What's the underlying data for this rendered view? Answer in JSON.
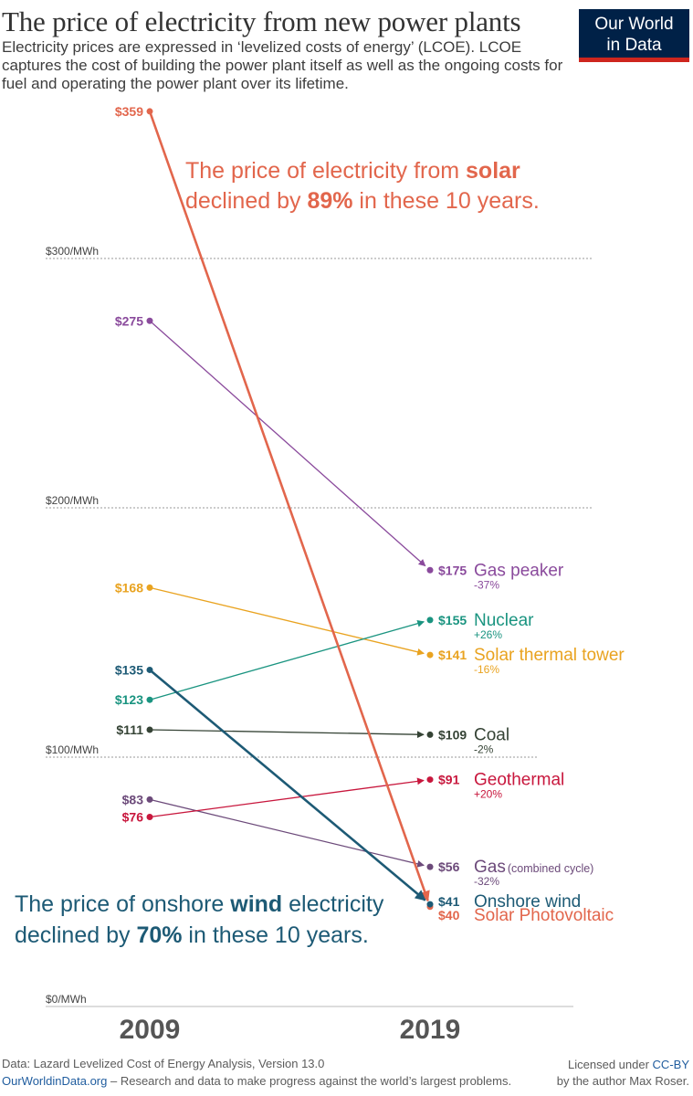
{
  "header": {
    "title": "The price of electricity from new power plants",
    "subtitle": "Electricity prices are expressed in ‘levelized costs of energy’ (LCOE). LCOE captures the cost of building the power plant itself as well as the ongoing costs for fuel and operating the power plant over its lifetime.",
    "logo_line1": "Our World",
    "logo_line2": "in Data"
  },
  "colors": {
    "logo_bg": "#002147",
    "logo_accent": "#ce261e",
    "grid": "#999999"
  },
  "chart_data": {
    "type": "slope",
    "x_labels": [
      "2009",
      "2019"
    ],
    "y_ticks": [
      {
        "value": 0,
        "label": "$0/MWh"
      },
      {
        "value": 100,
        "label": "$100/MWh"
      },
      {
        "value": 200,
        "label": "$200/MWh"
      },
      {
        "value": 300,
        "label": "$300/MWh"
      }
    ],
    "ylim": [
      0,
      359
    ],
    "series": [
      {
        "name": "Solar Photovoltaic",
        "v2009": 359,
        "v2019": 40,
        "label2009": "$359",
        "label2019": "$40",
        "change": "",
        "color": "#e2664c",
        "bold": true
      },
      {
        "name": "Gas peaker",
        "v2009": 275,
        "v2019": 175,
        "label2009": "$275",
        "label2019": "$175",
        "change": "-37%",
        "color": "#8a4a9c",
        "bold": false
      },
      {
        "name": "Solar thermal tower",
        "v2009": 168,
        "v2019": 141,
        "label2009": "$168",
        "label2019": "$141",
        "change": "-16%",
        "color": "#e9a320",
        "bold": false
      },
      {
        "name": "Onshore wind",
        "v2009": 135,
        "v2019": 41,
        "label2009": "$135",
        "label2019": "$41",
        "change": "",
        "color": "#1d5a75",
        "bold": true
      },
      {
        "name": "Nuclear",
        "v2009": 123,
        "v2019": 155,
        "label2009": "$123",
        "label2019": "$155",
        "change": "+26%",
        "color": "#1a9480",
        "bold": false
      },
      {
        "name": "Coal",
        "v2009": 111,
        "v2019": 109,
        "label2009": "$111",
        "label2019": "$109",
        "change": "-2%",
        "color": "#354335",
        "bold": false
      },
      {
        "name": "Gas",
        "suffix": "(combined cycle)",
        "v2009": 83,
        "v2019": 56,
        "label2009": "$83",
        "label2019": "$56",
        "change": "-32%",
        "color": "#6c4a7a",
        "bold": false
      },
      {
        "name": "Geothermal",
        "v2009": 76,
        "v2019": 91,
        "label2009": "$76",
        "label2019": "$91",
        "change": "+20%",
        "color": "#c8173d",
        "bold": false
      }
    ],
    "annotations": {
      "solar": {
        "pre": "The price of electricity from ",
        "bold1": "solar",
        "mid": "declined by ",
        "bold2": "89%",
        "post": " in these 10 years."
      },
      "wind": {
        "pre": "The price of onshore ",
        "bold1": "wind",
        "post1": " electricity",
        "mid": "declined by ",
        "bold2": "70%",
        "post": " in these 10 years."
      }
    }
  },
  "footer": {
    "source": "Data: Lazard Levelized Cost of Energy Analysis, Version 13.0",
    "site": "OurWorldinData.org",
    "tagline": " – Research and data to make progress against the world’s largest problems.",
    "license_pre": "Licensed under ",
    "license_link": "CC-BY",
    "author": "by the author Max Roser."
  }
}
